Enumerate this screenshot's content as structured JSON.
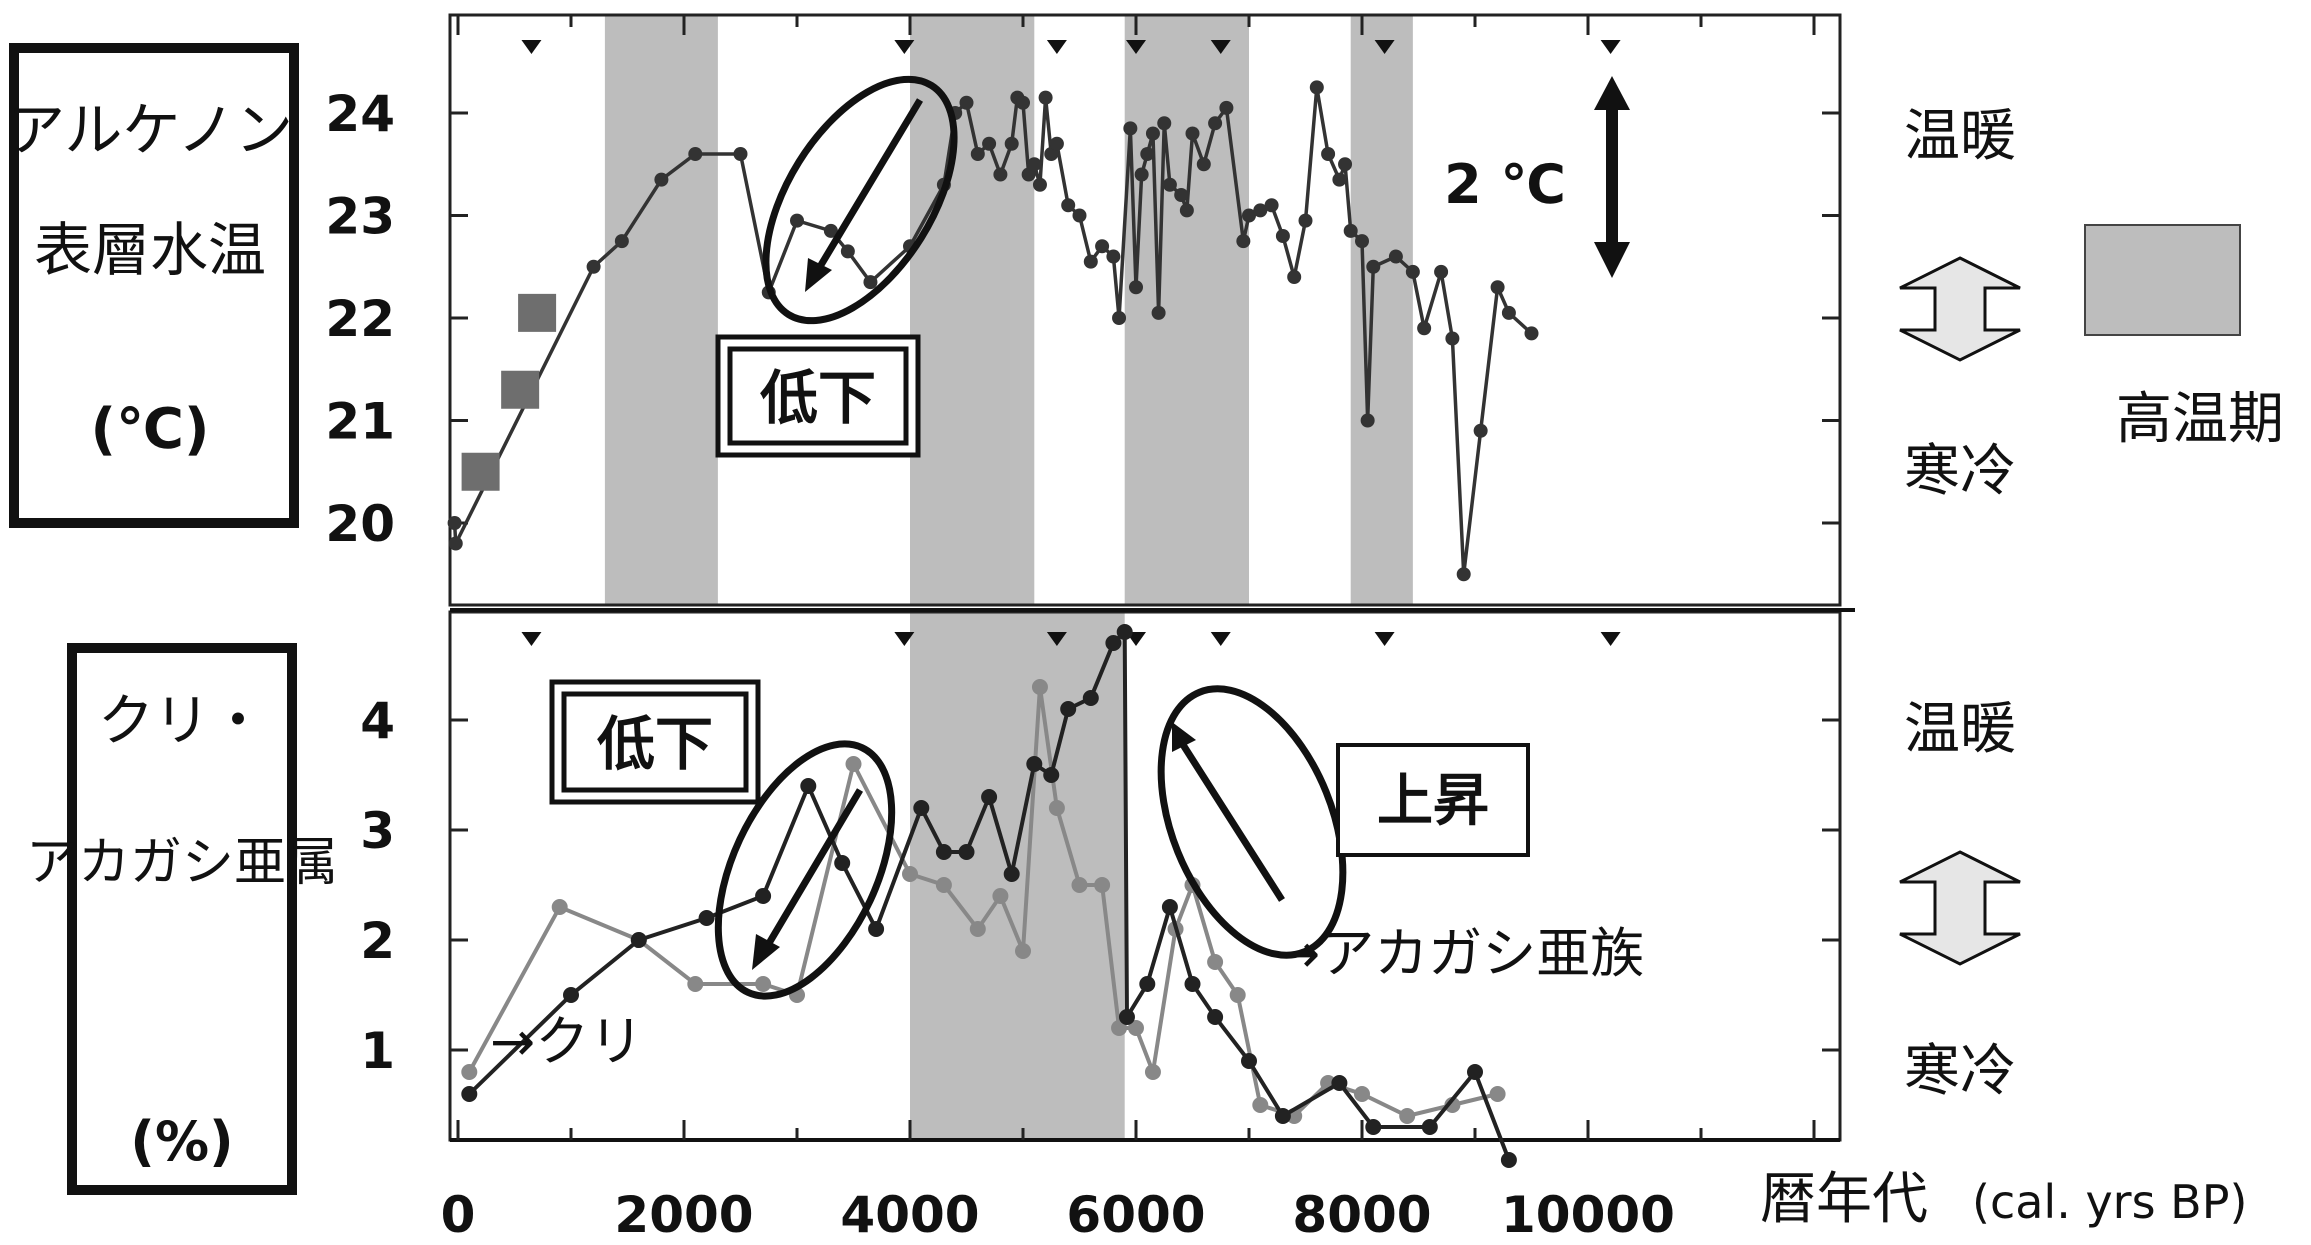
{
  "title_top": "アルケノン表層水温(℃)",
  "title_top_lines": [
    "アルケノン",
    "表層水温",
    "(℃)"
  ],
  "title_bottom_lines": [
    "クリ・",
    "アカガシ亜属",
    "(%)"
  ],
  "x_axis_label": "暦年代",
  "x_axis_unit": "(cal. yrs BP)",
  "x_ticks": [
    "0",
    "2000",
    "4000",
    "6000",
    "8000",
    "10000"
  ],
  "top_y_ticks": [
    "24",
    "23",
    "22",
    "21",
    "20"
  ],
  "bottom_y_ticks": [
    "4",
    "3",
    "2",
    "1"
  ],
  "label_warm": "温暖",
  "label_cold": "寒冷",
  "legend_warm_period": "高温期",
  "annotation_2c": "2 ℃",
  "annotation_decrease": "低下",
  "annotation_increase": "上昇",
  "series_label_kuri": "→クリ",
  "series_label_akagashi": "→アカガシ亜族",
  "colors": {
    "shade": "#bdbdbd",
    "kuri": "#222222",
    "akagashi": "#888888",
    "sst": "#333333",
    "square": "#6e6e6e"
  },
  "chart_data": [
    {
      "type": "line",
      "ylabel": "アルケノン表層水温(℃)",
      "xlabel": "暦年代 (cal. yrs BP)",
      "xlim": [
        0,
        12000
      ],
      "ylim": [
        19.1,
        24.9
      ],
      "shaded_periods": [
        [
          1300,
          2300
        ],
        [
          4000,
          5100
        ],
        [
          5900,
          7000
        ],
        [
          7900,
          8450
        ]
      ],
      "markers_x": [
        650,
        3950,
        5300,
        6000,
        6750,
        8200,
        10200
      ],
      "series": [
        {
          "values": [
            [
              -30,
              20.0
            ],
            [
              -20,
              19.8
            ],
            [
              1200,
              22.5
            ],
            [
              1450,
              22.75
            ],
            [
              1800,
              23.35
            ],
            [
              2100,
              23.6
            ],
            [
              2500,
              23.6
            ],
            [
              2750,
              22.25
            ],
            [
              3000,
              22.95
            ],
            [
              3300,
              22.85
            ],
            [
              3450,
              22.65
            ],
            [
              3650,
              22.35
            ],
            [
              4000,
              22.7
            ],
            [
              4300,
              23.3
            ],
            [
              4400,
              24.0
            ],
            [
              4500,
              24.1
            ],
            [
              4600,
              23.6
            ],
            [
              4700,
              23.7
            ],
            [
              4800,
              23.4
            ],
            [
              4900,
              23.7
            ],
            [
              4950,
              24.15
            ],
            [
              5000,
              24.1
            ],
            [
              5050,
              23.4
            ],
            [
              5100,
              23.5
            ],
            [
              5150,
              23.3
            ],
            [
              5200,
              24.15
            ],
            [
              5250,
              23.6
            ],
            [
              5300,
              23.7
            ],
            [
              5400,
              23.1
            ],
            [
              5500,
              23.0
            ],
            [
              5600,
              22.55
            ],
            [
              5700,
              22.7
            ],
            [
              5800,
              22.6
            ],
            [
              5850,
              22.0
            ],
            [
              5950,
              23.85
            ],
            [
              6000,
              22.3
            ],
            [
              6050,
              23.4
            ],
            [
              6100,
              23.6
            ],
            [
              6150,
              23.8
            ],
            [
              6200,
              22.05
            ],
            [
              6250,
              23.9
            ],
            [
              6300,
              23.3
            ],
            [
              6400,
              23.2
            ],
            [
              6450,
              23.05
            ],
            [
              6500,
              23.8
            ],
            [
              6600,
              23.5
            ],
            [
              6700,
              23.9
            ],
            [
              6800,
              24.05
            ],
            [
              6950,
              22.75
            ],
            [
              7000,
              23.0
            ],
            [
              7100,
              23.05
            ],
            [
              7200,
              23.1
            ],
            [
              7300,
              22.8
            ],
            [
              7400,
              22.4
            ],
            [
              7500,
              22.95
            ],
            [
              7600,
              24.25
            ],
            [
              7700,
              23.6
            ],
            [
              7800,
              23.35
            ],
            [
              7850,
              23.5
            ],
            [
              7900,
              22.85
            ],
            [
              8000,
              22.75
            ],
            [
              8050,
              21.0
            ],
            [
              8100,
              22.5
            ],
            [
              8300,
              22.6
            ],
            [
              8450,
              22.45
            ],
            [
              8550,
              21.9
            ],
            [
              8700,
              22.45
            ],
            [
              8800,
              21.8
            ],
            [
              8900,
              19.5
            ],
            [
              9050,
              20.9
            ],
            [
              9200,
              22.3
            ],
            [
              9300,
              22.05
            ],
            [
              9500,
              21.85
            ]
          ]
        },
        {
          "name": "squares",
          "values": [
            [
              200,
              20.5
            ],
            [
              550,
              21.3
            ],
            [
              700,
              22.05
            ]
          ]
        }
      ]
    },
    {
      "type": "line",
      "ylabel": "クリ・アカガシ亜属(%)",
      "xlabel": "暦年代 (cal. yrs BP)",
      "xlim": [
        0,
        12000
      ],
      "ylim": [
        0,
        5
      ],
      "shaded_periods": [
        [
          4000,
          5900
        ]
      ],
      "markers_x": [
        650,
        3950,
        5300,
        6000,
        6750,
        8200,
        10200
      ],
      "series": [
        {
          "name": "クリ",
          "values": [
            [
              100,
              0.6
            ],
            [
              1000,
              1.5
            ],
            [
              1600,
              2.0
            ],
            [
              2200,
              2.2
            ],
            [
              2700,
              2.4
            ],
            [
              3100,
              3.4
            ],
            [
              3400,
              2.7
            ],
            [
              3700,
              2.1
            ],
            [
              4100,
              3.2
            ],
            [
              4300,
              2.8
            ],
            [
              4500,
              2.8
            ],
            [
              4700,
              3.3
            ],
            [
              4900,
              2.6
            ],
            [
              5100,
              3.6
            ],
            [
              5250,
              3.5
            ],
            [
              5400,
              4.1
            ],
            [
              5600,
              4.2
            ],
            [
              5800,
              4.7
            ],
            [
              5900,
              4.8
            ],
            [
              5920,
              1.3
            ],
            [
              6100,
              1.6
            ],
            [
              6300,
              2.3
            ],
            [
              6500,
              1.6
            ],
            [
              6700,
              1.3
            ],
            [
              7000,
              0.9
            ],
            [
              7300,
              0.4
            ],
            [
              7800,
              0.7
            ],
            [
              8100,
              0.3
            ],
            [
              8600,
              0.3
            ],
            [
              9000,
              0.8
            ],
            [
              9300,
              0.0
            ]
          ]
        },
        {
          "name": "アカガシ亜族",
          "values": [
            [
              100,
              0.8
            ],
            [
              900,
              2.3
            ],
            [
              1600,
              2.0
            ],
            [
              2100,
              1.6
            ],
            [
              2700,
              1.6
            ],
            [
              3000,
              1.5
            ],
            [
              3500,
              3.6
            ],
            [
              4000,
              2.6
            ],
            [
              4300,
              2.5
            ],
            [
              4600,
              2.1
            ],
            [
              4800,
              2.4
            ],
            [
              5000,
              1.9
            ],
            [
              5150,
              4.3
            ],
            [
              5300,
              3.2
            ],
            [
              5500,
              2.5
            ],
            [
              5700,
              2.5
            ],
            [
              5850,
              1.2
            ],
            [
              6000,
              1.2
            ],
            [
              6150,
              0.8
            ],
            [
              6350,
              2.1
            ],
            [
              6500,
              2.5
            ],
            [
              6700,
              1.8
            ],
            [
              6900,
              1.5
            ],
            [
              7100,
              0.5
            ],
            [
              7400,
              0.4
            ],
            [
              7700,
              0.7
            ],
            [
              8000,
              0.6
            ],
            [
              8400,
              0.4
            ],
            [
              8800,
              0.5
            ],
            [
              9200,
              0.6
            ]
          ]
        }
      ]
    }
  ]
}
